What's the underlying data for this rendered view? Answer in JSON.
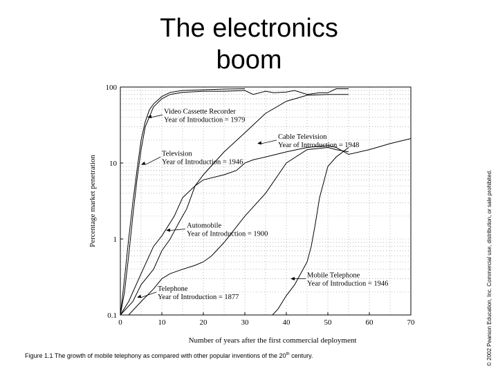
{
  "slide": {
    "title_line1": "The electronics",
    "title_line2": "boom",
    "copyright": "© 2002 Pearson Education, Inc. Commercial use, distribution, or sale prohibited.",
    "caption_prefix": "Figure 1.1  The growth of mobile telephony as compared with other popular inventions of the 20",
    "caption_sup": "th",
    "caption_suffix": " century."
  },
  "chart_data": {
    "type": "line",
    "xlabel": "Number of years after the first commercial deployment",
    "ylabel": "Percentage market penetration",
    "xlim": [
      0,
      70
    ],
    "ylim": [
      0.1,
      100
    ],
    "yscale": "log",
    "grid": true,
    "x_ticks": [
      0,
      10,
      20,
      30,
      40,
      50,
      60,
      70
    ],
    "y_ticks": [
      0.1,
      1,
      10,
      100
    ],
    "y_tick_labels": [
      "0.1",
      "1",
      "10",
      "100"
    ],
    "series": [
      {
        "name": "Video Cassette Recorder\nYear of Introduction = 1979",
        "x": [
          0,
          1,
          2,
          3,
          4,
          5,
          6,
          7,
          8,
          10,
          12,
          15,
          20,
          25,
          30
        ],
        "y": [
          0.1,
          0.3,
          1,
          3,
          8,
          20,
          35,
          50,
          60,
          75,
          85,
          90,
          92,
          94,
          95
        ]
      },
      {
        "name": "Cable Television\nYear of Introduction = 1948",
        "x": [
          0,
          2,
          5,
          8,
          10,
          13,
          15,
          18,
          20,
          25,
          30,
          35,
          40,
          45,
          50,
          53,
          55
        ],
        "y": [
          0.1,
          0.15,
          0.35,
          0.8,
          1.1,
          2,
          3.5,
          5,
          7,
          14,
          25,
          45,
          65,
          78,
          80,
          80,
          80
        ]
      },
      {
        "name": "Television\nYear of Introduction = 1946",
        "x": [
          0,
          1,
          2,
          3,
          4,
          5,
          6,
          8,
          10,
          12,
          15,
          20,
          25,
          30,
          32,
          35,
          37,
          40,
          42,
          45,
          48,
          50,
          52,
          55
        ],
        "y": [
          0.1,
          0.2,
          0.6,
          2,
          6,
          15,
          30,
          55,
          70,
          80,
          85,
          88,
          88,
          90,
          80,
          88,
          84,
          86,
          90,
          80,
          84,
          84,
          95,
          95
        ]
      },
      {
        "name": "Automobile\nYear of Introduction = 1900",
        "x": [
          0,
          3,
          5,
          8,
          10,
          12,
          14,
          16,
          18,
          20,
          25,
          28,
          30,
          32,
          35,
          40,
          45,
          50,
          52,
          55,
          60,
          65,
          70
        ],
        "y": [
          0.1,
          0.15,
          0.25,
          0.4,
          0.7,
          1,
          1.6,
          2.5,
          5,
          6,
          7,
          8,
          10,
          11,
          12,
          14,
          16,
          17,
          16,
          13,
          15,
          18,
          21
        ]
      },
      {
        "name": "Telephone\nYear of Introduction = 1877",
        "x": [
          0,
          2,
          5,
          8,
          10,
          12,
          15,
          18,
          20,
          22,
          25,
          30,
          35,
          40,
          45,
          50,
          52,
          55
        ],
        "y": [
          0.08,
          0.1,
          0.15,
          0.22,
          0.3,
          0.35,
          0.4,
          0.45,
          0.5,
          0.6,
          0.9,
          2,
          4,
          10,
          15,
          16,
          15,
          14
        ]
      },
      {
        "name": "Mobile Telephone\nYear of Introduction = 1946",
        "x": [
          35,
          38,
          40,
          42,
          45,
          46,
          47,
          48,
          50,
          52,
          55
        ],
        "y": [
          0.08,
          0.12,
          0.18,
          0.25,
          0.5,
          0.8,
          1.6,
          3.5,
          9,
          12,
          16
        ]
      }
    ],
    "annotations": [
      {
        "text_line1": "Video Cassette Recorder",
        "text_line2": "Year of Introduction = 1979",
        "target_x": 6.5,
        "target_y": 40,
        "label_x": 10.5,
        "label_y": 43,
        "arrow": "left"
      },
      {
        "text_line1": "Cable Television",
        "text_line2": "Year of Introduction = 1948",
        "target_x": 33,
        "target_y": 18,
        "label_x": 38,
        "label_y": 20,
        "arrow": "left"
      },
      {
        "text_line1": "Television",
        "text_line2": "Year of Introduction = 1946",
        "target_x": 5,
        "target_y": 9.5,
        "label_x": 10,
        "label_y": 12,
        "arrow": "left"
      },
      {
        "text_line1": "Automobile",
        "text_line2": "Year of Introduction = 1900",
        "target_x": 11,
        "target_y": 1.3,
        "label_x": 16,
        "label_y": 1.35,
        "arrow": "left"
      },
      {
        "text_line1": "Telephone",
        "text_line2": "Year of Introduction = 1877",
        "target_x": 4,
        "target_y": 0.17,
        "label_x": 9,
        "label_y": 0.2,
        "arrow": "left"
      },
      {
        "text_line1": "Mobile Telephone",
        "text_line2": "Year of Introduction = 1946",
        "target_x": 41,
        "target_y": 0.3,
        "label_x": 45,
        "label_y": 0.3,
        "arrow": "left"
      }
    ]
  }
}
